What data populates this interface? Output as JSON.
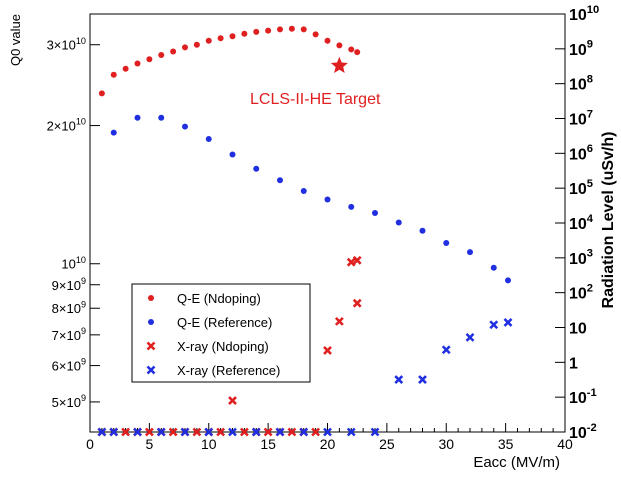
{
  "chart_data": {
    "type": "scatter",
    "xlabel": "Eacc (MV/m)",
    "ylabel_left": "Q0 value",
    "ylabel_right": "Radiation Level (uSv/h)",
    "xlim": [
      0,
      40
    ],
    "ylim_left": [
      4300000000,
      35000000000
    ],
    "ylim_right": [
      0.01,
      10000000000
    ],
    "y_left_scale": "log",
    "y_right_scale": "log",
    "grid": false,
    "legend_position": "bottom-left",
    "x_ticks": [
      {
        "v": 0,
        "label": "0"
      },
      {
        "v": 5,
        "label": "5"
      },
      {
        "v": 10,
        "label": "10"
      },
      {
        "v": 15,
        "label": "15"
      },
      {
        "v": 20,
        "label": "20"
      },
      {
        "v": 25,
        "label": "25"
      },
      {
        "v": 30,
        "label": "30"
      },
      {
        "v": 35,
        "label": "35"
      },
      {
        "v": 40,
        "label": "40"
      }
    ],
    "y_left_ticks": [
      {
        "v": 5000000000,
        "m": "5",
        "e": "9"
      },
      {
        "v": 6000000000,
        "m": "6",
        "e": "9"
      },
      {
        "v": 7000000000,
        "m": "7",
        "e": "9"
      },
      {
        "v": 8000000000,
        "m": "8",
        "e": "9"
      },
      {
        "v": 9000000000,
        "m": "9",
        "e": "9"
      },
      {
        "v": 10000000000,
        "m": "",
        "e": "10"
      },
      {
        "v": 20000000000,
        "m": "2",
        "e": "10"
      },
      {
        "v": 30000000000,
        "m": "3",
        "e": "10"
      }
    ],
    "y_right_ticks": [
      {
        "v": 0.01,
        "label": "",
        "e": "-2"
      },
      {
        "v": 0.1,
        "label": "",
        "e": "-1"
      },
      {
        "v": 1,
        "label": "1",
        "e": ""
      },
      {
        "v": 10,
        "label": "10",
        "e": ""
      },
      {
        "v": 100,
        "label": "",
        "e": "2"
      },
      {
        "v": 1000,
        "label": "",
        "e": "3"
      },
      {
        "v": 10000,
        "label": "",
        "e": "4"
      },
      {
        "v": 100000,
        "label": "",
        "e": "5"
      },
      {
        "v": 1000000,
        "label": "",
        "e": "6"
      },
      {
        "v": 10000000,
        "label": "",
        "e": "7"
      },
      {
        "v": 100000000,
        "label": "",
        "e": "8"
      },
      {
        "v": 1000000000,
        "label": "",
        "e": "9"
      },
      {
        "v": 10000000000,
        "label": "",
        "e": "10"
      }
    ],
    "series": [
      {
        "name": "Q-E (Ndoping)",
        "axis": "left",
        "marker": "circle",
        "color": "#e02020",
        "x": [
          1,
          2,
          3,
          4,
          5,
          6,
          7,
          8,
          9,
          10,
          11,
          12,
          13,
          14,
          15,
          16,
          17,
          18,
          19,
          20,
          21,
          22,
          22.5
        ],
        "y": [
          23500000000,
          25800000000,
          26600000000,
          27300000000,
          27900000000,
          28500000000,
          29000000000,
          29600000000,
          30000000000,
          30600000000,
          31000000000,
          31300000000,
          31700000000,
          32000000000,
          32200000000,
          32400000000,
          32500000000,
          32400000000,
          31600000000,
          30600000000,
          29900000000,
          29300000000,
          28900000000
        ]
      },
      {
        "name": "Q-E (Reference)",
        "axis": "left",
        "marker": "circle",
        "color": "#2030e0",
        "x": [
          2,
          4,
          6,
          8,
          10,
          12,
          14,
          16,
          18,
          20,
          22,
          24,
          26,
          28,
          30,
          32,
          34,
          35.2
        ],
        "y": [
          19300000000,
          20800000000,
          20800000000,
          19900000000,
          18700000000,
          17300000000,
          16100000000,
          15200000000,
          14400000000,
          13800000000,
          13300000000,
          12900000000,
          12300000000,
          11800000000,
          11100000000,
          10600000000,
          9800000000,
          9200000000
        ]
      },
      {
        "name": "X-ray (Ndoping)",
        "axis": "right",
        "marker": "x",
        "color": "#e02020",
        "x": [
          1,
          2,
          3,
          4,
          5,
          6,
          7,
          8,
          9,
          10,
          11,
          12,
          13,
          14,
          15,
          16,
          17,
          18,
          19,
          20,
          21,
          22,
          22.5
        ],
        "y": [
          0.01,
          0.01,
          0.01,
          0.01,
          0.01,
          0.01,
          0.01,
          0.01,
          0.01,
          0.01,
          0.01,
          0.08,
          0.01,
          0.01,
          0.01,
          0.01,
          0.01,
          0.01,
          0.01,
          2.2,
          15,
          750,
          850
        ],
        "y_extra": [
          {
            "x": 22.5,
            "y": 50
          }
        ]
      },
      {
        "name": "X-ray (Reference)",
        "axis": "right",
        "marker": "x",
        "color": "#2030e0",
        "x": [
          1,
          2,
          4,
          6,
          8,
          10,
          12,
          14,
          16,
          18,
          20,
          22,
          24,
          26,
          28,
          30,
          32,
          34,
          35.2
        ],
        "y": [
          0.01,
          0.01,
          0.01,
          0.01,
          0.01,
          0.01,
          0.01,
          0.01,
          0.01,
          0.01,
          0.01,
          0.01,
          0.01,
          0.32,
          0.32,
          2.3,
          5.2,
          12,
          14
        ]
      }
    ],
    "annotation": {
      "text": "LCLS-II-HE Target",
      "x": 21,
      "y": 27000000000,
      "color": "#e02020",
      "marker": "star"
    }
  },
  "legend": [
    {
      "label": "Q-E (Ndoping)",
      "marker": "circle",
      "color": "#e02020"
    },
    {
      "label": "Q-E (Reference)",
      "marker": "circle",
      "color": "#2030e0"
    },
    {
      "label": "X-ray (Ndoping)",
      "marker": "x",
      "color": "#e02020"
    },
    {
      "label": "X-ray (Reference)",
      "marker": "x",
      "color": "#2030e0"
    }
  ]
}
